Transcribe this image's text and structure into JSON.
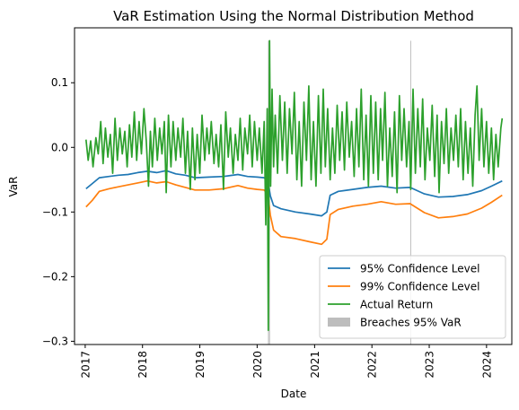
{
  "chart_data": {
    "type": "line",
    "title": "VaR Estimation Using the Normal Distribution Method",
    "xlabel": "Date",
    "ylabel": "VaR",
    "xlim": [
      "2016-10-25",
      "2024-06-10"
    ],
    "ylim": [
      -0.305,
      0.185
    ],
    "x_ticks": [
      "2017",
      "2018",
      "2019",
      "2020",
      "2021",
      "2022",
      "2023",
      "2024"
    ],
    "y_ticks": [
      0.1,
      0.0,
      -0.1,
      -0.2,
      -0.3
    ],
    "y_tick_labels": [
      "0.1",
      "0.0",
      "−0.1",
      "−0.2",
      "−0.3"
    ],
    "grid": false,
    "legend_position": "lower right",
    "series": [
      {
        "name": "95% Confidence Level",
        "color": "#1f77b4",
        "points": [
          [
            "2017-01-06",
            -0.064
          ],
          [
            "2017-02-15",
            -0.056
          ],
          [
            "2017-04-01",
            -0.047
          ],
          [
            "2017-06-01",
            -0.045
          ],
          [
            "2017-08-01",
            -0.043
          ],
          [
            "2017-10-01",
            -0.042
          ],
          [
            "2017-12-01",
            -0.039
          ],
          [
            "2018-02-01",
            -0.037
          ],
          [
            "2018-04-01",
            -0.039
          ],
          [
            "2018-06-01",
            -0.036
          ],
          [
            "2018-08-01",
            -0.041
          ],
          [
            "2018-10-01",
            -0.043
          ],
          [
            "2018-12-01",
            -0.047
          ],
          [
            "2019-03-01",
            -0.046
          ],
          [
            "2019-06-01",
            -0.045
          ],
          [
            "2019-09-01",
            -0.042
          ],
          [
            "2019-11-01",
            -0.045
          ],
          [
            "2020-01-01",
            -0.046
          ],
          [
            "2020-02-15",
            -0.047
          ],
          [
            "2020-03-10",
            -0.052
          ],
          [
            "2020-03-25",
            -0.075
          ],
          [
            "2020-04-15",
            -0.09
          ],
          [
            "2020-06-01",
            -0.095
          ],
          [
            "2020-09-01",
            -0.1
          ],
          [
            "2020-12-01",
            -0.103
          ],
          [
            "2021-02-15",
            -0.106
          ],
          [
            "2021-03-20",
            -0.1
          ],
          [
            "2021-04-10",
            -0.074
          ],
          [
            "2021-06-01",
            -0.068
          ],
          [
            "2021-09-01",
            -0.065
          ],
          [
            "2021-12-01",
            -0.062
          ],
          [
            "2022-03-01",
            -0.06
          ],
          [
            "2022-06-01",
            -0.063
          ],
          [
            "2022-09-01",
            -0.062
          ],
          [
            "2022-12-01",
            -0.072
          ],
          [
            "2023-03-01",
            -0.077
          ],
          [
            "2023-06-01",
            -0.076
          ],
          [
            "2023-09-01",
            -0.073
          ],
          [
            "2023-12-01",
            -0.067
          ],
          [
            "2024-02-01",
            -0.06
          ],
          [
            "2024-04-10",
            -0.052
          ]
        ]
      },
      {
        "name": "99% Confidence Level",
        "color": "#ff7f0e",
        "points": [
          [
            "2017-01-06",
            -0.092
          ],
          [
            "2017-02-15",
            -0.082
          ],
          [
            "2017-04-01",
            -0.068
          ],
          [
            "2017-06-01",
            -0.064
          ],
          [
            "2017-08-01",
            -0.061
          ],
          [
            "2017-10-01",
            -0.058
          ],
          [
            "2017-12-01",
            -0.055
          ],
          [
            "2018-02-01",
            -0.052
          ],
          [
            "2018-04-01",
            -0.055
          ],
          [
            "2018-06-01",
            -0.053
          ],
          [
            "2018-08-01",
            -0.058
          ],
          [
            "2018-10-01",
            -0.062
          ],
          [
            "2018-12-01",
            -0.066
          ],
          [
            "2019-03-01",
            -0.066
          ],
          [
            "2019-06-01",
            -0.064
          ],
          [
            "2019-09-01",
            -0.059
          ],
          [
            "2019-11-01",
            -0.063
          ],
          [
            "2020-01-01",
            -0.065
          ],
          [
            "2020-02-15",
            -0.066
          ],
          [
            "2020-03-10",
            -0.073
          ],
          [
            "2020-03-25",
            -0.105
          ],
          [
            "2020-04-15",
            -0.128
          ],
          [
            "2020-06-01",
            -0.138
          ],
          [
            "2020-09-01",
            -0.141
          ],
          [
            "2020-12-01",
            -0.146
          ],
          [
            "2021-02-15",
            -0.15
          ],
          [
            "2021-03-20",
            -0.142
          ],
          [
            "2021-04-10",
            -0.104
          ],
          [
            "2021-06-01",
            -0.096
          ],
          [
            "2021-09-01",
            -0.091
          ],
          [
            "2021-12-01",
            -0.088
          ],
          [
            "2022-03-01",
            -0.084
          ],
          [
            "2022-06-01",
            -0.088
          ],
          [
            "2022-09-01",
            -0.087
          ],
          [
            "2022-12-01",
            -0.101
          ],
          [
            "2023-03-01",
            -0.109
          ],
          [
            "2023-06-01",
            -0.107
          ],
          [
            "2023-09-01",
            -0.103
          ],
          [
            "2023-12-01",
            -0.094
          ],
          [
            "2024-02-01",
            -0.085
          ],
          [
            "2024-04-10",
            -0.074
          ]
        ]
      },
      {
        "name": "Actual Return",
        "color": "#2ca02c",
        "points": [
          [
            "2017-01-06",
            0.012
          ],
          [
            "2017-01-20",
            -0.02
          ],
          [
            "2017-02-05",
            0.01
          ],
          [
            "2017-02-20",
            -0.03
          ],
          [
            "2017-03-10",
            0.015
          ],
          [
            "2017-03-25",
            -0.01
          ],
          [
            "2017-04-10",
            0.04
          ],
          [
            "2017-04-25",
            -0.025
          ],
          [
            "2017-05-10",
            0.03
          ],
          [
            "2017-05-25",
            -0.015
          ],
          [
            "2017-06-10",
            0.02
          ],
          [
            "2017-06-25",
            -0.04
          ],
          [
            "2017-07-10",
            0.045
          ],
          [
            "2017-07-25",
            -0.02
          ],
          [
            "2017-08-10",
            0.03
          ],
          [
            "2017-08-25",
            -0.01
          ],
          [
            "2017-09-10",
            0.025
          ],
          [
            "2017-09-25",
            -0.03
          ],
          [
            "2017-10-10",
            0.035
          ],
          [
            "2017-10-25",
            -0.015
          ],
          [
            "2017-11-10",
            0.055
          ],
          [
            "2017-11-25",
            -0.02
          ],
          [
            "2017-12-10",
            0.04
          ],
          [
            "2017-12-25",
            -0.01
          ],
          [
            "2018-01-10",
            0.06
          ],
          [
            "2018-01-25",
            0.01
          ],
          [
            "2018-02-08",
            -0.06
          ],
          [
            "2018-02-20",
            0.025
          ],
          [
            "2018-03-05",
            -0.03
          ],
          [
            "2018-03-20",
            0.045
          ],
          [
            "2018-04-05",
            -0.02
          ],
          [
            "2018-04-20",
            0.03
          ],
          [
            "2018-05-05",
            -0.01
          ],
          [
            "2018-05-20",
            0.04
          ],
          [
            "2018-06-01",
            -0.07
          ],
          [
            "2018-06-15",
            0.05
          ],
          [
            "2018-07-01",
            -0.03
          ],
          [
            "2018-07-15",
            0.04
          ],
          [
            "2018-08-01",
            -0.02
          ],
          [
            "2018-08-15",
            0.03
          ],
          [
            "2018-09-01",
            -0.015
          ],
          [
            "2018-09-15",
            0.045
          ],
          [
            "2018-10-01",
            -0.04
          ],
          [
            "2018-10-15",
            0.025
          ],
          [
            "2018-11-01",
            -0.065
          ],
          [
            "2018-11-15",
            0.03
          ],
          [
            "2018-12-01",
            -0.05
          ],
          [
            "2018-12-15",
            0.02
          ],
          [
            "2019-01-01",
            -0.04
          ],
          [
            "2019-01-15",
            0.05
          ],
          [
            "2019-02-01",
            -0.02
          ],
          [
            "2019-02-15",
            0.03
          ],
          [
            "2019-03-01",
            -0.01
          ],
          [
            "2019-03-15",
            0.04
          ],
          [
            "2019-04-01",
            -0.025
          ],
          [
            "2019-04-15",
            0.02
          ],
          [
            "2019-05-01",
            -0.03
          ],
          [
            "2019-05-15",
            0.035
          ],
          [
            "2019-06-01",
            -0.065
          ],
          [
            "2019-06-15",
            0.055
          ],
          [
            "2019-07-01",
            -0.015
          ],
          [
            "2019-07-15",
            0.03
          ],
          [
            "2019-08-01",
            -0.04
          ],
          [
            "2019-08-15",
            0.02
          ],
          [
            "2019-09-01",
            -0.02
          ],
          [
            "2019-09-15",
            0.045
          ],
          [
            "2019-10-01",
            -0.035
          ],
          [
            "2019-10-15",
            0.03
          ],
          [
            "2019-11-01",
            -0.01
          ],
          [
            "2019-11-15",
            0.05
          ],
          [
            "2019-12-01",
            -0.03
          ],
          [
            "2019-12-15",
            0.04
          ],
          [
            "2020-01-01",
            -0.02
          ],
          [
            "2020-01-15",
            0.03
          ],
          [
            "2020-02-01",
            -0.04
          ],
          [
            "2020-02-15",
            0.04
          ],
          [
            "2020-02-25",
            -0.12
          ],
          [
            "2020-03-05",
            0.06
          ],
          [
            "2020-03-12",
            -0.283
          ],
          [
            "2020-03-20",
            0.165
          ],
          [
            "2020-03-27",
            -0.06
          ],
          [
            "2020-04-05",
            0.09
          ],
          [
            "2020-04-15",
            -0.03
          ],
          [
            "2020-04-25",
            0.05
          ],
          [
            "2020-05-10",
            -0.04
          ],
          [
            "2020-05-25",
            0.08
          ],
          [
            "2020-06-10",
            -0.02
          ],
          [
            "2020-06-25",
            0.07
          ],
          [
            "2020-07-10",
            -0.04
          ],
          [
            "2020-07-25",
            0.06
          ],
          [
            "2020-08-10",
            -0.01
          ],
          [
            "2020-08-25",
            0.085
          ],
          [
            "2020-09-10",
            -0.05
          ],
          [
            "2020-09-25",
            0.04
          ],
          [
            "2020-10-10",
            -0.06
          ],
          [
            "2020-10-25",
            0.07
          ],
          [
            "2020-11-10",
            -0.02
          ],
          [
            "2020-11-25",
            0.095
          ],
          [
            "2020-12-10",
            -0.05
          ],
          [
            "2020-12-25",
            0.04
          ],
          [
            "2021-01-10",
            -0.06
          ],
          [
            "2021-01-25",
            0.08
          ],
          [
            "2021-02-10",
            -0.04
          ],
          [
            "2021-02-25",
            0.09
          ],
          [
            "2021-03-10",
            -0.03
          ],
          [
            "2021-03-25",
            0.06
          ],
          [
            "2021-04-10",
            -0.05
          ],
          [
            "2021-04-25",
            0.03
          ],
          [
            "2021-05-10",
            -0.04
          ],
          [
            "2021-05-25",
            0.065
          ],
          [
            "2021-06-10",
            -0.02
          ],
          [
            "2021-06-25",
            0.055
          ],
          [
            "2021-07-10",
            -0.035
          ],
          [
            "2021-07-25",
            0.07
          ],
          [
            "2021-08-10",
            -0.015
          ],
          [
            "2021-08-25",
            0.04
          ],
          [
            "2021-09-10",
            -0.045
          ],
          [
            "2021-09-25",
            0.06
          ],
          [
            "2021-10-10",
            -0.03
          ],
          [
            "2021-10-25",
            0.09
          ],
          [
            "2021-11-10",
            -0.05
          ],
          [
            "2021-11-25",
            0.05
          ],
          [
            "2021-12-10",
            -0.06
          ],
          [
            "2021-12-25",
            0.08
          ],
          [
            "2022-01-10",
            -0.04
          ],
          [
            "2022-01-25",
            0.07
          ],
          [
            "2022-02-10",
            -0.05
          ],
          [
            "2022-02-25",
            0.06
          ],
          [
            "2022-03-10",
            -0.02
          ],
          [
            "2022-03-25",
            0.085
          ],
          [
            "2022-04-10",
            -0.06
          ],
          [
            "2022-04-25",
            0.03
          ],
          [
            "2022-05-10",
            -0.045
          ],
          [
            "2022-05-25",
            0.055
          ],
          [
            "2022-06-10",
            -0.07
          ],
          [
            "2022-06-25",
            0.08
          ],
          [
            "2022-07-10",
            -0.02
          ],
          [
            "2022-07-25",
            0.06
          ],
          [
            "2022-08-10",
            -0.03
          ],
          [
            "2022-08-25",
            0.04
          ],
          [
            "2022-09-05",
            -0.065
          ],
          [
            "2022-09-20",
            0.09
          ],
          [
            "2022-10-05",
            -0.04
          ],
          [
            "2022-10-20",
            0.06
          ],
          [
            "2022-11-05",
            -0.03
          ],
          [
            "2022-11-20",
            0.075
          ],
          [
            "2022-12-05",
            -0.05
          ],
          [
            "2022-12-20",
            0.03
          ],
          [
            "2023-01-05",
            -0.02
          ],
          [
            "2023-01-20",
            0.065
          ],
          [
            "2023-02-05",
            -0.045
          ],
          [
            "2023-02-20",
            0.05
          ],
          [
            "2023-03-05",
            -0.07
          ],
          [
            "2023-03-20",
            0.04
          ],
          [
            "2023-04-05",
            -0.025
          ],
          [
            "2023-04-20",
            0.06
          ],
          [
            "2023-05-05",
            -0.04
          ],
          [
            "2023-05-20",
            0.03
          ],
          [
            "2023-06-05",
            -0.02
          ],
          [
            "2023-06-20",
            0.05
          ],
          [
            "2023-07-05",
            -0.03
          ],
          [
            "2023-07-20",
            0.06
          ],
          [
            "2023-08-05",
            -0.05
          ],
          [
            "2023-08-20",
            0.04
          ],
          [
            "2023-09-05",
            -0.04
          ],
          [
            "2023-09-20",
            0.03
          ],
          [
            "2023-10-05",
            -0.06
          ],
          [
            "2023-10-20",
            0.05
          ],
          [
            "2023-11-01",
            0.095
          ],
          [
            "2023-11-15",
            -0.02
          ],
          [
            "2023-12-01",
            0.06
          ],
          [
            "2023-12-15",
            -0.03
          ],
          [
            "2024-01-01",
            0.04
          ],
          [
            "2024-01-15",
            -0.04
          ],
          [
            "2024-02-01",
            0.03
          ],
          [
            "2024-02-15",
            -0.05
          ],
          [
            "2024-03-01",
            0.02
          ],
          [
            "2024-03-15",
            -0.03
          ],
          [
            "2024-04-01",
            0.03
          ],
          [
            "2024-04-10",
            0.045
          ]
        ]
      }
    ],
    "breaches": {
      "name": "Breaches 95% VaR",
      "color": "#bdbdbd",
      "dates": [
        "2020-03-13",
        "2020-03-20",
        "2022-09-05"
      ],
      "ymin": -0.305,
      "ymax": 0.165
    }
  }
}
